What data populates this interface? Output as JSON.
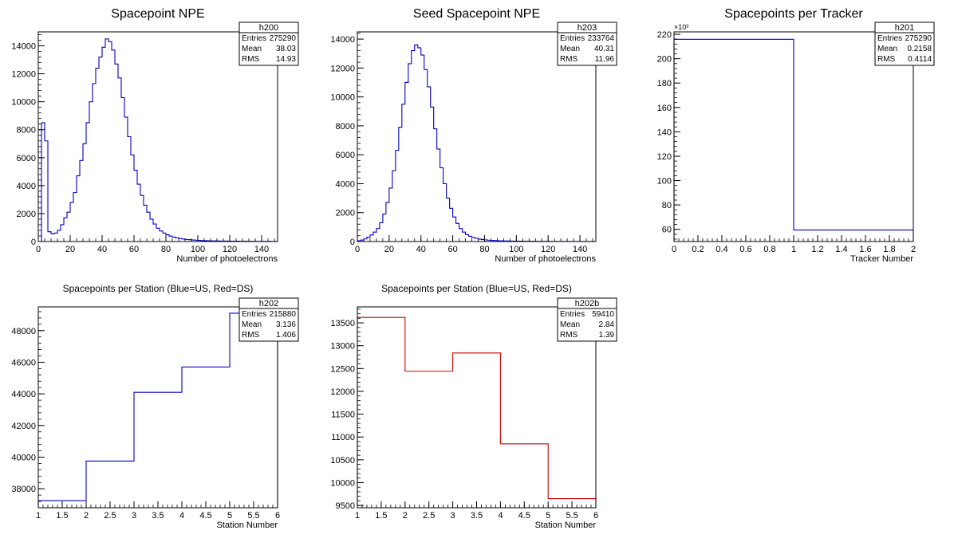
{
  "chart_data": [
    {
      "type": "histogram",
      "title": "Spacepoint NPE",
      "xlabel": "Number of photoelectrons",
      "ylabel": "",
      "xlim": [
        0,
        150
      ],
      "ylim": [
        0,
        15000
      ],
      "bin_width": 2,
      "xticks": [
        0,
        20,
        40,
        60,
        80,
        100,
        120,
        140
      ],
      "yticks": [
        0,
        2000,
        4000,
        6000,
        8000,
        10000,
        12000,
        14000
      ],
      "color": "#0000cc",
      "stats": {
        "name": "h200",
        "rows": [
          [
            "Entries",
            "275290"
          ],
          [
            "Mean",
            "38.03"
          ],
          [
            "RMS",
            "14.93"
          ]
        ]
      },
      "values": [
        0,
        8500,
        7200,
        700,
        550,
        600,
        800,
        1200,
        1700,
        2100,
        2800,
        3500,
        4700,
        5800,
        7000,
        8500,
        10000,
        11300,
        12400,
        13200,
        13900,
        14500,
        14300,
        13700,
        12700,
        11700,
        10300,
        8900,
        7500,
        6200,
        5100,
        4100,
        3300,
        2600,
        2100,
        1600,
        1250,
        950,
        750,
        600,
        480,
        390,
        320,
        260,
        220,
        180,
        150,
        130,
        110,
        95,
        80,
        70,
        60,
        55,
        50,
        45,
        40,
        36,
        32,
        30,
        27,
        25,
        22,
        20,
        18,
        16,
        15,
        13,
        12,
        11,
        10,
        9,
        8,
        7,
        7
      ]
    },
    {
      "type": "histogram",
      "title": "Seed Spacepoint NPE",
      "xlabel": "Number of photoelectrons",
      "ylabel": "",
      "xlim": [
        0,
        150
      ],
      "ylim": [
        0,
        14500
      ],
      "bin_width": 2,
      "xticks": [
        0,
        20,
        40,
        60,
        80,
        100,
        120,
        140
      ],
      "yticks": [
        0,
        2000,
        4000,
        6000,
        8000,
        10000,
        12000,
        14000
      ],
      "color": "#0000cc",
      "stats": {
        "name": "h203",
        "rows": [
          [
            "Entries",
            "233764"
          ],
          [
            "Mean",
            "40.31"
          ],
          [
            "RMS",
            "11.96"
          ]
        ]
      },
      "values": [
        50,
        100,
        180,
        300,
        450,
        650,
        900,
        1300,
        1900,
        2700,
        3700,
        4900,
        6300,
        7900,
        9500,
        11000,
        12300,
        13200,
        13600,
        13400,
        12900,
        11900,
        10700,
        9300,
        7800,
        6400,
        5100,
        4000,
        3000,
        2300,
        1700,
        1250,
        900,
        650,
        480,
        360,
        280,
        220,
        170,
        140,
        110,
        90,
        75,
        65,
        55,
        48,
        42,
        36,
        32,
        28,
        25,
        22,
        20,
        18,
        16,
        14,
        12,
        11,
        10,
        9,
        8,
        7,
        6,
        6,
        5,
        5,
        4,
        4,
        3,
        3,
        3,
        2,
        2,
        2,
        2
      ]
    },
    {
      "type": "histogram",
      "title": "Spacepoints per Tracker",
      "xlabel": "Tracker Number",
      "ylabel": "",
      "xlim": [
        0,
        2
      ],
      "ylim": [
        50,
        222
      ],
      "y_exponent": "×10³",
      "xticks": [
        0,
        0.2,
        0.4,
        0.6,
        0.8,
        1,
        1.2,
        1.4,
        1.6,
        1.8,
        2
      ],
      "xtick_labels": [
        "0",
        "0.2",
        "0.4",
        "0.6",
        "0.8",
        "1",
        "1.2",
        "1.4",
        "1.6",
        "1.8",
        "2"
      ],
      "yticks": [
        60,
        80,
        100,
        120,
        140,
        160,
        180,
        200,
        220
      ],
      "color": "#0000cc",
      "stats": {
        "name": "h201",
        "rows": [
          [
            "Entries",
            "275290"
          ],
          [
            "Mean",
            "0.2158"
          ],
          [
            "RMS",
            "0.4114"
          ]
        ]
      },
      "edges": [
        0,
        1,
        2
      ],
      "values": [
        215.88,
        59.41
      ]
    },
    {
      "type": "histogram",
      "title": "Spacepoints per Station (Blue=US, Red=DS)",
      "xlabel": "Station Number",
      "ylabel": "",
      "xlim": [
        1,
        6
      ],
      "ylim": [
        36800,
        49500
      ],
      "xticks": [
        1,
        1.5,
        2,
        2.5,
        3,
        3.5,
        4,
        4.5,
        5,
        5.5,
        6
      ],
      "xtick_labels": [
        "1",
        "1.5",
        "2",
        "2.5",
        "3",
        "3.5",
        "4",
        "4.5",
        "5",
        "5.5",
        "6"
      ],
      "yticks": [
        38000,
        40000,
        42000,
        44000,
        46000,
        48000
      ],
      "color": "#0000cc",
      "stats": {
        "name": "h202",
        "rows": [
          [
            "Entries",
            "215880"
          ],
          [
            "Mean",
            "3.136"
          ],
          [
            "RMS",
            "1.406"
          ]
        ]
      },
      "edges": [
        1,
        2,
        3,
        4,
        5,
        6
      ],
      "values": [
        37250,
        39750,
        44100,
        45700,
        49100
      ]
    },
    {
      "type": "histogram",
      "title": "Spacepoints per Station (Blue=US, Red=DS)",
      "xlabel": "Station Number",
      "ylabel": "",
      "xlim": [
        1,
        6
      ],
      "ylim": [
        9450,
        13850
      ],
      "xticks": [
        1,
        1.5,
        2,
        2.5,
        3,
        3.5,
        4,
        4.5,
        5,
        5.5,
        6
      ],
      "xtick_labels": [
        "1",
        "1.5",
        "2",
        "2.5",
        "3",
        "3.5",
        "4",
        "4.5",
        "5",
        "5.5",
        "6"
      ],
      "yticks": [
        9500,
        10000,
        10500,
        11000,
        11500,
        12000,
        12500,
        13000,
        13500
      ],
      "color": "#cc0000",
      "stats": {
        "name": "h202b",
        "rows": [
          [
            "Entries",
            "59410"
          ],
          [
            "Mean",
            "2.84"
          ],
          [
            "RMS",
            "1.39"
          ]
        ]
      },
      "edges": [
        1,
        2,
        3,
        4,
        5,
        6
      ],
      "values": [
        13620,
        12440,
        12840,
        10850,
        9650
      ]
    }
  ]
}
